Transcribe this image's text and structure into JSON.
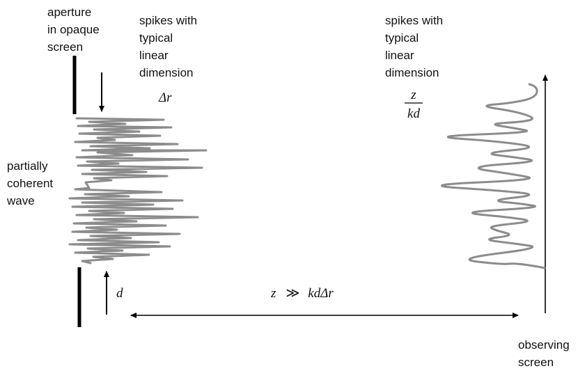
{
  "labels": {
    "aperture": [
      "aperture",
      "in opaque",
      "screen"
    ],
    "spikes_left": [
      "spikes with",
      "typical",
      "linear",
      "dimension"
    ],
    "spikes_right": [
      "spikes with",
      "typical",
      "linear",
      "dimension"
    ],
    "wave": [
      "partially",
      "coherent",
      "wave"
    ],
    "observing": [
      "observing",
      "screen"
    ]
  },
  "math": {
    "delta_r": "Δr",
    "ratio_num": "z",
    "ratio_den": "kd",
    "d": "d",
    "cond_z": "z",
    "cond_rel": "≫",
    "cond_rhs": "kdΔr"
  },
  "colors": {
    "ink": "#000000",
    "wave": "#8c8c8c"
  }
}
